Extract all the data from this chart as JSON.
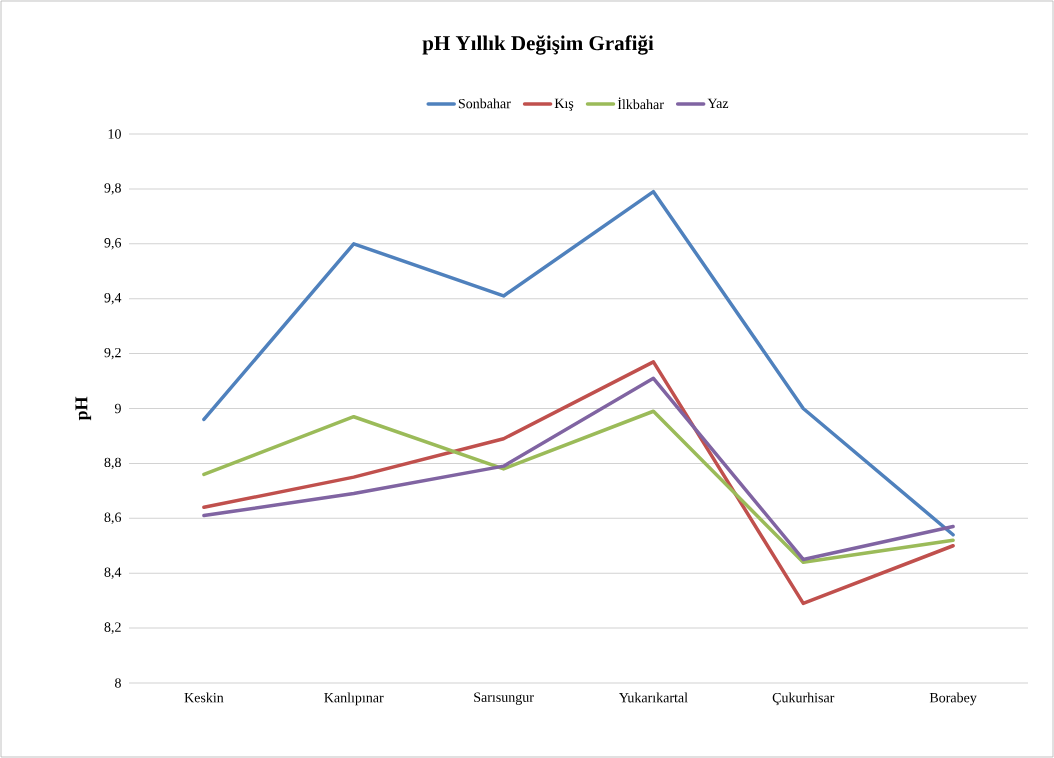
{
  "chart_data": {
    "type": "line",
    "title": "pH Yıllık Değişim Grafiği",
    "ylabel": "pH",
    "categories": [
      "Keskin",
      "Kanlıpınar",
      "Sarısungur",
      "Yukarıkartal",
      "Çukurhisar",
      "Borabey"
    ],
    "series": [
      {
        "name": "Sonbahar",
        "color": "#4f81bd",
        "values": [
          8.96,
          9.6,
          9.41,
          9.79,
          9.0,
          8.54
        ]
      },
      {
        "name": "Kış",
        "color": "#c0504d",
        "values": [
          8.64,
          8.75,
          8.89,
          9.17,
          8.29,
          8.5
        ]
      },
      {
        "name": "İlkbahar",
        "color": "#9bbb59",
        "values": [
          8.76,
          8.97,
          8.78,
          8.99,
          8.44,
          8.52
        ]
      },
      {
        "name": "Yaz",
        "color": "#8064a2",
        "values": [
          8.61,
          8.69,
          8.79,
          9.11,
          8.45,
          8.57
        ]
      }
    ],
    "ylim": [
      8,
      10
    ],
    "yticks": [
      8,
      {
        "value": 8.2,
        "label": "8,2"
      },
      {
        "value": 8.4,
        "label": "8,4"
      },
      {
        "value": 8.6,
        "label": "8,6"
      },
      {
        "value": 8.8,
        "label": "8,8"
      },
      9,
      {
        "value": 9.2,
        "label": "9,2"
      },
      {
        "value": 9.4,
        "label": "9,4"
      },
      {
        "value": 9.6,
        "label": "9,6"
      },
      {
        "value": 9.8,
        "label": "9,8"
      },
      10
    ],
    "grid": "y",
    "legend": "top"
  }
}
